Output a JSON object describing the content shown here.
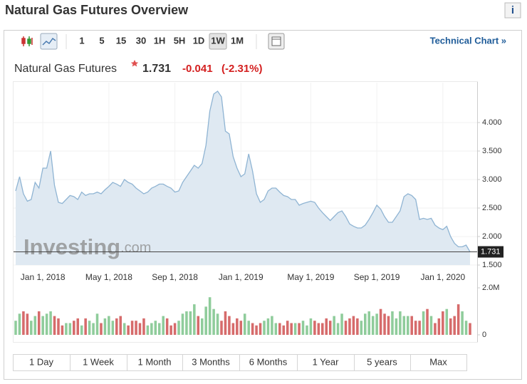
{
  "header": {
    "title": "Natural Gas Futures Overview",
    "info_icon": "i"
  },
  "toolbar": {
    "intervals": [
      "1",
      "5",
      "15",
      "30",
      "1H",
      "5H",
      "1D",
      "1W",
      "1M"
    ],
    "active_interval_index": 7,
    "technical_chart": "Technical Chart »"
  },
  "quote": {
    "name": "Natural Gas Futures",
    "price": "1.731",
    "change": "-0.041",
    "change_percent": "(-2.31%)"
  },
  "watermark": {
    "brand": "Investing",
    "suffix": ".com"
  },
  "range_buttons": [
    "1 Day",
    "1 Week",
    "1 Month",
    "3 Months",
    "6 Months",
    "1 Year",
    "5 years",
    "Max"
  ],
  "chart_data": [
    {
      "type": "area",
      "categories": [
        null,
        null,
        null,
        null,
        null,
        null,
        null,
        "Jan 1, 2018",
        null,
        null,
        null,
        null,
        null,
        null,
        null,
        null,
        null,
        null,
        null,
        null,
        null,
        null,
        null,
        null,
        "May 1, 2018",
        null,
        null,
        null,
        null,
        null,
        null,
        null,
        null,
        null,
        null,
        null,
        null,
        null,
        null,
        null,
        null,
        "Sep 1, 2018",
        null,
        null,
        null,
        null,
        null,
        null,
        null,
        null,
        null,
        null,
        null,
        null,
        null,
        null,
        null,
        null,
        "Jan 1, 2019",
        null,
        null,
        null,
        null,
        null,
        null,
        null,
        null,
        null,
        null,
        null,
        null,
        null,
        null,
        null,
        null,
        null,
        "May 1, 2019",
        null,
        null,
        null,
        null,
        null,
        null,
        null,
        null,
        null,
        null,
        null,
        null,
        null,
        null,
        null,
        null,
        "Sep 1, 2019",
        null,
        null,
        null,
        null,
        null,
        null,
        null,
        null,
        null,
        null,
        null,
        null,
        null,
        null,
        null,
        null,
        "Jan 1, 2020",
        null,
        null,
        null,
        null,
        null,
        null,
        null
      ],
      "values": [
        2.8,
        3.05,
        2.75,
        2.62,
        2.65,
        2.95,
        2.85,
        3.2,
        3.2,
        3.5,
        2.9,
        2.6,
        2.58,
        2.65,
        2.72,
        2.7,
        2.65,
        2.78,
        2.72,
        2.75,
        2.75,
        2.78,
        2.75,
        2.82,
        2.88,
        2.95,
        2.92,
        2.88,
        3.0,
        2.95,
        2.92,
        2.85,
        2.8,
        2.75,
        2.78,
        2.85,
        2.88,
        2.92,
        2.92,
        2.88,
        2.85,
        2.78,
        2.8,
        2.95,
        3.05,
        3.15,
        3.25,
        3.2,
        3.28,
        3.6,
        4.2,
        4.5,
        4.55,
        4.45,
        3.85,
        3.8,
        3.4,
        3.2,
        3.05,
        3.1,
        3.45,
        3.15,
        2.75,
        2.6,
        2.65,
        2.8,
        2.85,
        2.85,
        2.78,
        2.72,
        2.7,
        2.65,
        2.65,
        2.55,
        2.58,
        2.6,
        2.62,
        2.6,
        2.5,
        2.42,
        2.35,
        2.28,
        2.35,
        2.42,
        2.45,
        2.35,
        2.22,
        2.18,
        2.15,
        2.15,
        2.2,
        2.3,
        2.42,
        2.55,
        2.48,
        2.35,
        2.25,
        2.25,
        2.35,
        2.45,
        2.7,
        2.75,
        2.72,
        2.65,
        2.3,
        2.32,
        2.3,
        2.32,
        2.2,
        2.15,
        2.12,
        2.18,
        2.0,
        1.88,
        1.82,
        1.82,
        1.85,
        1.731
      ],
      "color": "#8fb4d3",
      "fill": "#dfe9f2",
      "ylim": [
        1.5,
        4.7
      ],
      "yticks": [
        {
          "value": 1.5,
          "label": "1.500"
        },
        {
          "value": 2,
          "label": "2.000"
        },
        {
          "value": 2.5,
          "label": "2.500"
        },
        {
          "value": 3,
          "label": "3.000"
        },
        {
          "value": 3.5,
          "label": "3.500"
        },
        {
          "value": 4,
          "label": "4.000"
        }
      ],
      "grid": true
    },
    {
      "type": "bar",
      "values": [
        0.6,
        0.9,
        1.0,
        0.9,
        0.6,
        0.8,
        1.0,
        0.8,
        0.9,
        1.0,
        0.8,
        0.7,
        0.4,
        0.5,
        0.5,
        0.6,
        0.7,
        0.4,
        0.7,
        0.6,
        0.5,
        0.9,
        0.5,
        0.7,
        0.8,
        0.6,
        0.7,
        0.8,
        0.5,
        0.4,
        0.6,
        0.6,
        0.5,
        0.7,
        0.4,
        0.5,
        0.6,
        0.5,
        0.8,
        0.7,
        0.4,
        0.5,
        0.6,
        0.9,
        1.0,
        1.0,
        1.3,
        0.8,
        0.7,
        1.2,
        1.6,
        1.1,
        0.9,
        0.6,
        1.0,
        0.8,
        0.5,
        0.7,
        0.6,
        0.9,
        0.6,
        0.5,
        0.4,
        0.5,
        0.6,
        0.7,
        0.8,
        0.5,
        0.5,
        0.4,
        0.6,
        0.5,
        0.5,
        0.5,
        0.6,
        0.4,
        0.7,
        0.6,
        0.5,
        0.5,
        0.7,
        0.6,
        0.8,
        0.5,
        0.9,
        0.6,
        0.7,
        0.8,
        0.7,
        0.6,
        0.9,
        1.0,
        0.8,
        0.9,
        1.1,
        0.9,
        0.8,
        1.0,
        0.7,
        1.0,
        0.8,
        0.8,
        0.8,
        0.6,
        0.6,
        1.0,
        1.1,
        0.8,
        0.5,
        0.7,
        1.0,
        1.1,
        0.7,
        0.8,
        1.3,
        1.0,
        0.6,
        0.5
      ],
      "up_color": "#8fcc9b",
      "down_color": "#d66b6b",
      "ylim": [
        0,
        2
      ],
      "yticks": [
        0,
        {
          "value": 2,
          "label": "2.0M"
        }
      ]
    }
  ]
}
